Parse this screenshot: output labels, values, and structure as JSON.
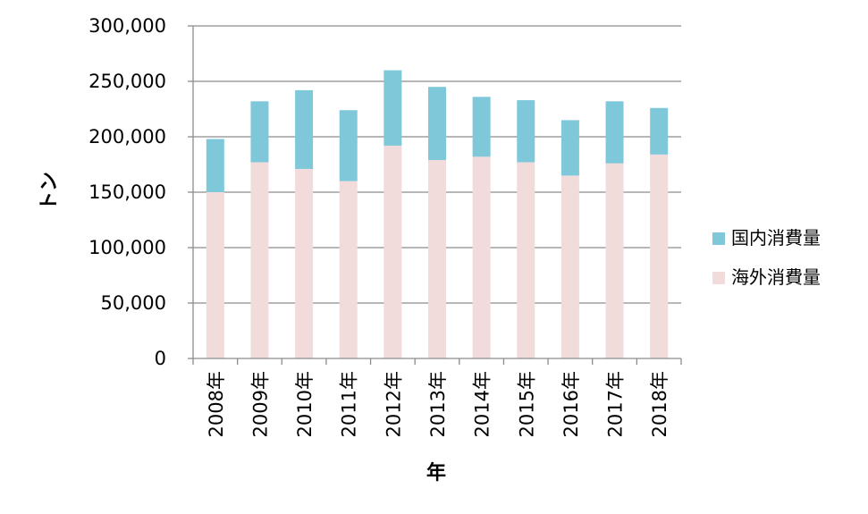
{
  "chart_data": {
    "type": "bar",
    "stacked": true,
    "xlabel": "年",
    "ylabel": "トン",
    "ylim": [
      0,
      300000
    ],
    "yticks": [
      "0",
      "50,000",
      "100,000",
      "150,000",
      "200,000",
      "250,000",
      "300,000"
    ],
    "grid": true,
    "legend_position": "right",
    "categories": [
      "2008年",
      "2009年",
      "2010年",
      "2011年",
      "2012年",
      "2013年",
      "2014年",
      "2015年",
      "2016年",
      "2017年",
      "2018年"
    ],
    "series": [
      {
        "name": "海外消費量",
        "color": "#f2dcdb",
        "values": [
          150000,
          177000,
          171000,
          160000,
          192000,
          179000,
          182000,
          177000,
          165000,
          176000,
          184000
        ]
      },
      {
        "name": "国内消費量",
        "color": "#7ec8da",
        "values": [
          48000,
          55000,
          71000,
          64000,
          68000,
          66000,
          54000,
          56000,
          50000,
          56000,
          42000
        ]
      }
    ]
  }
}
